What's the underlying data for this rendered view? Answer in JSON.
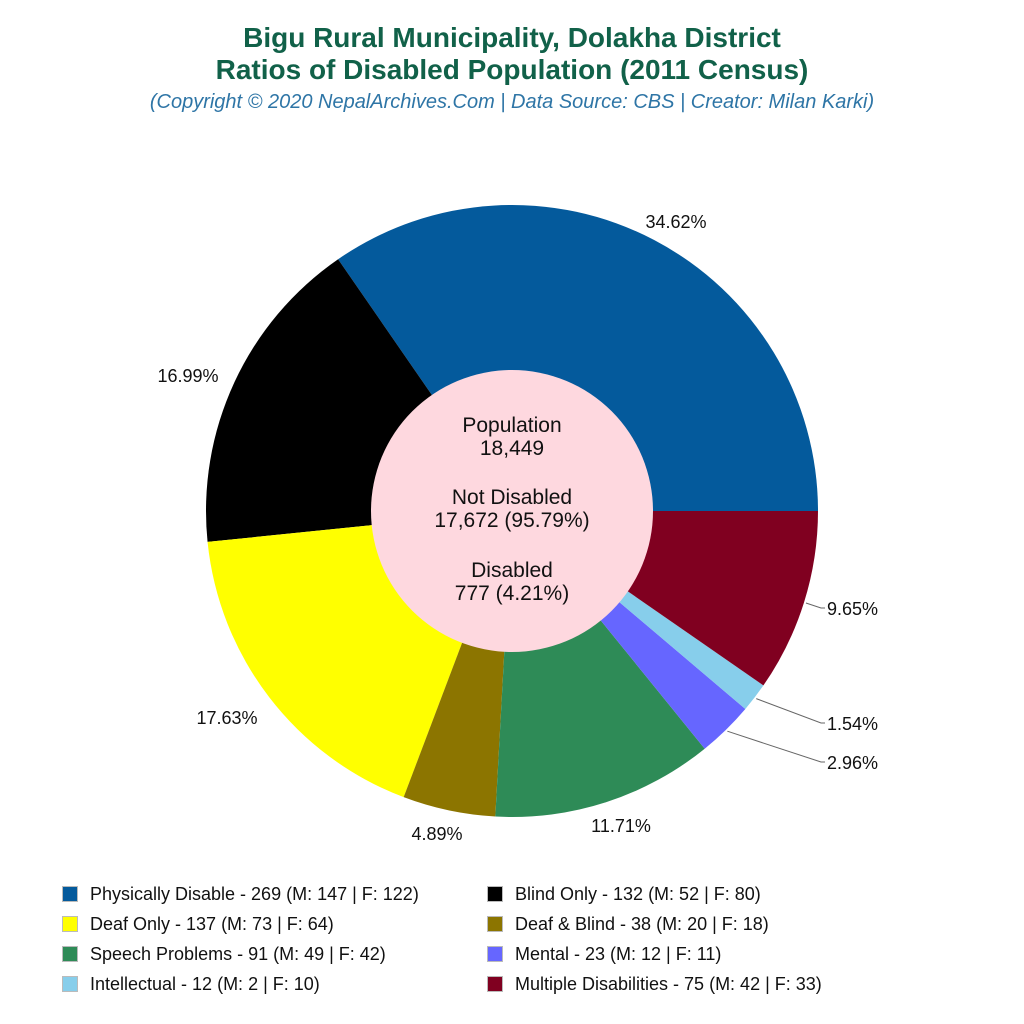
{
  "header": {
    "title_line1": "Bigu Rural Municipality, Dolakha District",
    "title_line2": "Ratios of Disabled Population (2011 Census)",
    "subtitle": "(Copyright © 2020 NepalArchives.Com | Data Source: CBS | Creator: Milan Karki)"
  },
  "center": {
    "population_label": "Population",
    "population_value": "18,449",
    "not_disabled_label": "Not Disabled",
    "not_disabled_value": "17,672 (95.79%)",
    "disabled_label": "Disabled",
    "disabled_value": "777 (4.21%)"
  },
  "chart_data": {
    "type": "pie",
    "subtype": "donut",
    "title": "Bigu Rural Municipality, Dolakha District - Ratios of Disabled Population (2011 Census)",
    "subtitle": "(Copyright © 2020 NepalArchives.Com | Data Source: CBS | Creator: Milan Karki)",
    "legend_position": "bottom",
    "start_angle": "3 o'clock, counterclockwise",
    "categories": [
      "Physically Disable",
      "Blind Only",
      "Deaf Only",
      "Deaf & Blind",
      "Speech Problems",
      "Mental",
      "Intellectual",
      "Multiple Disabilities"
    ],
    "values": [
      269,
      132,
      137,
      38,
      91,
      23,
      12,
      75
    ],
    "male": [
      147,
      52,
      73,
      20,
      49,
      12,
      2,
      42
    ],
    "female": [
      122,
      80,
      64,
      18,
      42,
      11,
      10,
      33
    ],
    "percent_labels": [
      "34.62%",
      "16.99%",
      "17.63%",
      "4.89%",
      "11.71%",
      "2.96%",
      "1.54%",
      "9.65%"
    ],
    "colors": [
      "#045a9c",
      "#000000",
      "#ffff00",
      "#8c7500",
      "#2e8b57",
      "#6666ff",
      "#87ceeb",
      "#800020"
    ],
    "center_summary": {
      "population": 18449,
      "not_disabled": 17672,
      "not_disabled_pct": 95.79,
      "disabled": 777,
      "disabled_pct": 4.21
    },
    "center_color": "#fed8df"
  },
  "legend": {
    "items": [
      {
        "label": "Physically Disable - 269 (M: 147 | F: 122)",
        "color": "#045a9c"
      },
      {
        "label": "Blind Only - 132 (M: 52 | F: 80)",
        "color": "#000000"
      },
      {
        "label": "Deaf Only - 137 (M: 73 | F: 64)",
        "color": "#ffff00"
      },
      {
        "label": "Deaf & Blind - 38 (M: 20 | F: 18)",
        "color": "#8c7500"
      },
      {
        "label": "Speech Problems - 91 (M: 49 | F: 42)",
        "color": "#2e8b57"
      },
      {
        "label": "Mental - 23 (M: 12 | F: 11)",
        "color": "#6666ff"
      },
      {
        "label": "Intellectual - 12 (M: 2 | F: 10)",
        "color": "#87ceeb"
      },
      {
        "label": "Multiple Disabilities - 75 (M: 42 | F: 33)",
        "color": "#800020"
      }
    ]
  }
}
